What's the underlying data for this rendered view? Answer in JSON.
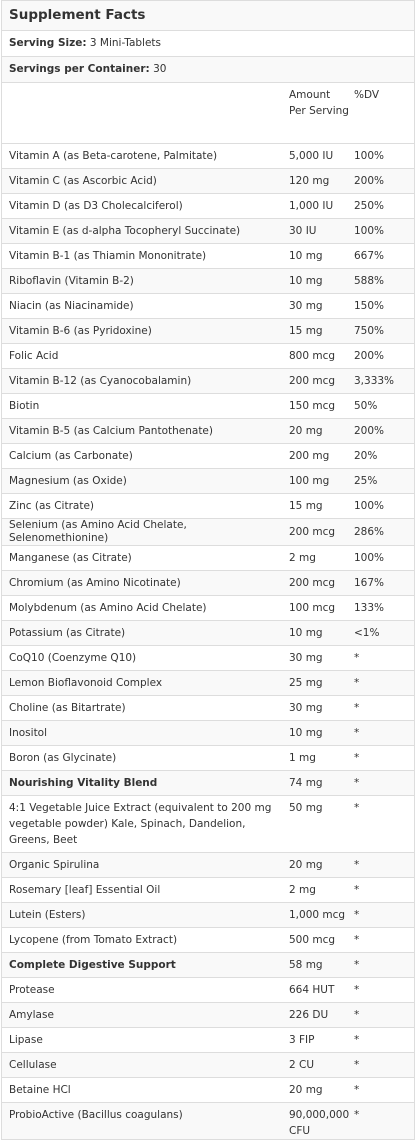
{
  "title": "Supplement Facts",
  "serving_size": {
    "label": "Serving Size:",
    "value": "3 Mini-Tablets"
  },
  "servings_per_container": {
    "label": "Servings per Container:",
    "value": "30"
  },
  "columns": {
    "name": "",
    "amount": "Amount Per Serving",
    "dv": "%DV"
  },
  "rows": [
    {
      "name": "Vitamin A (as Beta-carotene, Palmitate)",
      "amount": "5,000 IU",
      "dv": "100%"
    },
    {
      "name": "Vitamin C (as Ascorbic Acid)",
      "amount": "120 mg",
      "dv": "200%"
    },
    {
      "name": "Vitamin D (as D3 Cholecalciferol)",
      "amount": "1,000 IU",
      "dv": "250%"
    },
    {
      "name": "Vitamin E (as d-alpha Tocopheryl Succinate)",
      "amount": "30 IU",
      "dv": "100%"
    },
    {
      "name": "Vitamin B-1 (as Thiamin Mononitrate)",
      "amount": "10 mg",
      "dv": "667%"
    },
    {
      "name": "Riboflavin (Vitamin B-2)",
      "amount": "10 mg",
      "dv": "588%"
    },
    {
      "name": "Niacin (as Niacinamide)",
      "amount": "30 mg",
      "dv": "150%"
    },
    {
      "name": "Vitamin B-6 (as Pyridoxine)",
      "amount": "15 mg",
      "dv": "750%"
    },
    {
      "name": "Folic Acid",
      "amount": "800 mcg",
      "dv": "200%"
    },
    {
      "name": "Vitamin B-12 (as Cyanocobalamin)",
      "amount": "200 mcg",
      "dv": "3,333%"
    },
    {
      "name": "Biotin",
      "amount": "150 mcg",
      "dv": "50%"
    },
    {
      "name": "Vitamin B-5 (as Calcium Pantothenate)",
      "amount": "20 mg",
      "dv": "200%"
    },
    {
      "name": "Calcium (as Carbonate)",
      "amount": "200 mg",
      "dv": "20%"
    },
    {
      "name": "Magnesium (as Oxide)",
      "amount": "100 mg",
      "dv": "25%"
    },
    {
      "name": "Zinc (as Citrate)",
      "amount": "15 mg",
      "dv": "100%"
    },
    {
      "name": "Selenium (as Amino Acid Chelate, Selenomethionine)",
      "amount": "200 mcg",
      "dv": "286%"
    },
    {
      "name": "Manganese (as Citrate)",
      "amount": "2 mg",
      "dv": "100%"
    },
    {
      "name": "Chromium (as Amino Nicotinate)",
      "amount": "200 mcg",
      "dv": "167%"
    },
    {
      "name": "Molybdenum (as Amino Acid Chelate)",
      "amount": "100 mcg",
      "dv": "133%"
    },
    {
      "name": "Potassium (as Citrate)",
      "amount": "10 mg",
      "dv": "<1%"
    },
    {
      "name": "CoQ10 (Coenzyme Q10)",
      "amount": "30 mg",
      "dv": "*"
    },
    {
      "name": "Lemon Bioflavonoid Complex",
      "amount": "25 mg",
      "dv": "*"
    },
    {
      "name": "Choline (as Bitartrate)",
      "amount": "30 mg",
      "dv": "*"
    },
    {
      "name": "Inositol",
      "amount": "10 mg",
      "dv": "*"
    },
    {
      "name": "Boron (as Glycinate)",
      "amount": "1 mg",
      "dv": "*"
    },
    {
      "name": "Nourishing Vitality Blend",
      "amount": "74 mg",
      "dv": "*",
      "bold": true
    },
    {
      "name": "4:1 Vegetable Juice Extract (equivalent to 200 mg vegetable powder) Kale, Spinach, Dandelion, Greens, Beet",
      "amount": "50 mg",
      "dv": "*",
      "tall": true
    },
    {
      "name": "Organic Spirulina",
      "amount": "20 mg",
      "dv": "*"
    },
    {
      "name": "Rosemary [leaf] Essential Oil",
      "amount": "2 mg",
      "dv": "*"
    },
    {
      "name": "Lutein (Esters)",
      "amount": "1,000 mcg",
      "dv": "*"
    },
    {
      "name": "Lycopene (from Tomato Extract)",
      "amount": "500 mcg",
      "dv": "*"
    },
    {
      "name": "Complete Digestive Support",
      "amount": "58 mg",
      "dv": "*",
      "bold": true
    },
    {
      "name": "Protease",
      "amount": "664 HUT",
      "dv": "*"
    },
    {
      "name": "Amylase",
      "amount": "226 DU",
      "dv": "*"
    },
    {
      "name": "Lipase",
      "amount": "3 FIP",
      "dv": "*"
    },
    {
      "name": "Cellulase",
      "amount": "2 CU",
      "dv": "*"
    },
    {
      "name": "Betaine HCl",
      "amount": "20 mg",
      "dv": "*"
    },
    {
      "name": "ProbioActive (Bacillus coagulans)",
      "amount": "90,000,000 CFU",
      "dv": "*",
      "tall": true
    }
  ]
}
